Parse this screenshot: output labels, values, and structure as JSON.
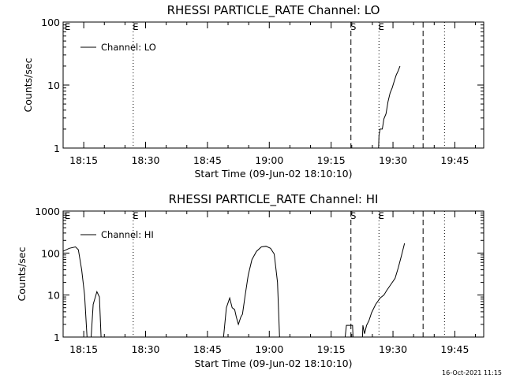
{
  "footer": {
    "timestamp": "16-Oct-2021 11:15"
  },
  "chart_data": [
    {
      "type": "line",
      "title": "RHESSI PARTICLE_RATE Channel: LO",
      "xlabel": "Start Time (09-Jun-02 18:10:10)",
      "ylabel": "Counts/sec",
      "yscale": "log",
      "ylim": [
        1,
        100
      ],
      "xlim_minutes": [
        0,
        102
      ],
      "xticks": [
        {
          "min": 5,
          "label": "18:15"
        },
        {
          "min": 20,
          "label": "18:30"
        },
        {
          "min": 35,
          "label": "18:45"
        },
        {
          "min": 50,
          "label": "19:00"
        },
        {
          "min": 65,
          "label": "19:15"
        },
        {
          "min": 80,
          "label": "19:30"
        },
        {
          "min": 95,
          "label": "19:45"
        }
      ],
      "yticks": [
        {
          "value": 1,
          "label": "1"
        },
        {
          "value": 10,
          "label": "10"
        },
        {
          "value": 100,
          "label": "100"
        }
      ],
      "legend": "top-left",
      "series": [
        {
          "name": "Channel: LO",
          "points": [
            [
              76.5,
              1
            ],
            [
              76.6,
              1.6
            ],
            [
              76.9,
              2.0
            ],
            [
              77.4,
              2.0
            ],
            [
              77.8,
              2.9
            ],
            [
              78.3,
              3.5
            ],
            [
              78.8,
              5.5
            ],
            [
              79.3,
              7.5
            ],
            [
              79.8,
              9.0
            ],
            [
              80.3,
              11.5
            ],
            [
              80.8,
              14.5
            ],
            [
              81.3,
              17
            ],
            [
              81.7,
              20
            ]
          ]
        }
      ],
      "markers": [
        {
          "min": 17.0,
          "style": "dotted",
          "label": "E"
        },
        {
          "min": 69.8,
          "style": "dashed",
          "label": "S"
        },
        {
          "min": 76.6,
          "style": "dotted",
          "label": "E"
        },
        {
          "min": 87.3,
          "style": "dashed",
          "label": ""
        },
        {
          "min": 92.5,
          "style": "dotted",
          "label": ""
        }
      ],
      "corner_label": "E"
    },
    {
      "type": "line",
      "title": "RHESSI PARTICLE_RATE Channel: HI",
      "xlabel": "Start Time (09-Jun-02 18:10:10)",
      "ylabel": "Counts/sec",
      "yscale": "log",
      "ylim": [
        1,
        1000
      ],
      "xlim_minutes": [
        0,
        102
      ],
      "xticks": [
        {
          "min": 5,
          "label": "18:15"
        },
        {
          "min": 20,
          "label": "18:30"
        },
        {
          "min": 35,
          "label": "18:45"
        },
        {
          "min": 50,
          "label": "19:00"
        },
        {
          "min": 65,
          "label": "19:15"
        },
        {
          "min": 80,
          "label": "19:30"
        },
        {
          "min": 95,
          "label": "19:45"
        }
      ],
      "yticks": [
        {
          "value": 1,
          "label": "1"
        },
        {
          "value": 10,
          "label": "10"
        },
        {
          "value": 100,
          "label": "100"
        },
        {
          "value": 1000,
          "label": "1000"
        }
      ],
      "legend": "top-left",
      "series": [
        {
          "name": "Channel: HI",
          "segments": [
            [
              [
                0,
                110
              ],
              [
                1.5,
                130
              ],
              [
                3,
                140
              ],
              [
                3.7,
                120
              ],
              [
                4.5,
                40
              ],
              [
                5.2,
                10
              ],
              [
                5.8,
                1
              ]
            ],
            [
              [
                6.8,
                1
              ],
              [
                7.3,
                6
              ],
              [
                8.2,
                12
              ],
              [
                8.8,
                9
              ],
              [
                9.2,
                1
              ]
            ],
            [
              [
                38.9,
                1
              ],
              [
                39.6,
                5
              ],
              [
                40.4,
                8.5
              ],
              [
                41.0,
                5
              ],
              [
                41.6,
                4.5
              ],
              [
                42.0,
                3
              ],
              [
                42.5,
                2
              ],
              [
                43.1,
                3
              ],
              [
                43.5,
                3.5
              ],
              [
                44.1,
                9
              ],
              [
                44.9,
                30
              ],
              [
                45.8,
                70
              ],
              [
                46.9,
                110
              ],
              [
                48.1,
                140
              ],
              [
                49.2,
                145
              ],
              [
                50.3,
                130
              ],
              [
                51.2,
                95
              ],
              [
                52.0,
                20
              ],
              [
                52.5,
                1
              ]
            ],
            [
              [
                68.4,
                1
              ],
              [
                68.7,
                1.9
              ],
              [
                70.2,
                1.9
              ],
              [
                70.3,
                1
              ]
            ],
            [
              [
                72.6,
                1
              ],
              [
                72.7,
                1.9
              ],
              [
                73.1,
                1.2
              ],
              [
                73.6,
                1.9
              ],
              [
                74.2,
                2.5
              ],
              [
                74.8,
                3.8
              ],
              [
                75.8,
                6
              ],
              [
                76.9,
                8.5
              ],
              [
                77.8,
                10
              ],
              [
                78.5,
                13
              ],
              [
                79.5,
                18
              ],
              [
                80.5,
                25
              ],
              [
                81.3,
                45
              ],
              [
                82.1,
                90
              ],
              [
                82.8,
                170
              ]
            ]
          ]
        }
      ],
      "markers": [
        {
          "min": 17.0,
          "style": "dotted",
          "label": "E"
        },
        {
          "min": 69.8,
          "style": "dashed",
          "label": "S"
        },
        {
          "min": 76.6,
          "style": "dotted",
          "label": "E"
        },
        {
          "min": 87.3,
          "style": "dashed",
          "label": ""
        },
        {
          "min": 92.5,
          "style": "dotted",
          "label": ""
        }
      ],
      "corner_label": "E"
    }
  ]
}
